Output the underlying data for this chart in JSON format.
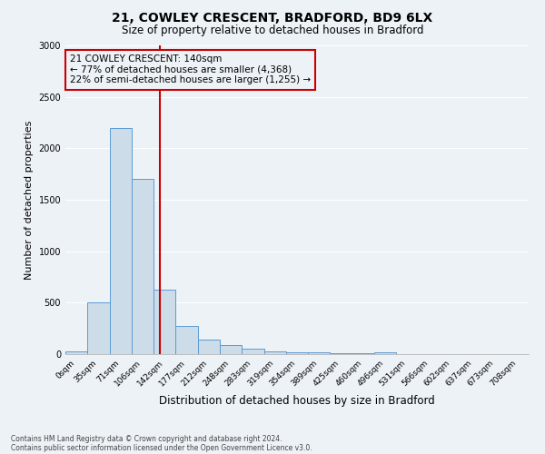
{
  "title1": "21, COWLEY CRESCENT, BRADFORD, BD9 6LX",
  "title2": "Size of property relative to detached houses in Bradford",
  "xlabel": "Distribution of detached houses by size in Bradford",
  "ylabel": "Number of detached properties",
  "bin_labels": [
    "0sqm",
    "35sqm",
    "71sqm",
    "106sqm",
    "142sqm",
    "177sqm",
    "212sqm",
    "248sqm",
    "283sqm",
    "319sqm",
    "354sqm",
    "389sqm",
    "425sqm",
    "460sqm",
    "496sqm",
    "531sqm",
    "566sqm",
    "602sqm",
    "637sqm",
    "673sqm",
    "708sqm"
  ],
  "bar_heights": [
    30,
    500,
    2200,
    1700,
    630,
    270,
    145,
    90,
    50,
    30,
    20,
    15,
    10,
    8,
    20,
    0,
    0,
    0,
    0,
    0,
    0
  ],
  "bar_color": "#ccdce8",
  "bar_edge_color": "#5b9bd5",
  "vline_x": 3.77,
  "vline_color": "#cc0000",
  "annotation_text": "21 COWLEY CRESCENT: 140sqm\n← 77% of detached houses are smaller (4,368)\n22% of semi-detached houses are larger (1,255) →",
  "annotation_box_color": "#cc0000",
  "ylim": [
    0,
    3000
  ],
  "yticks": [
    0,
    500,
    1000,
    1500,
    2000,
    2500,
    3000
  ],
  "footnote1": "Contains HM Land Registry data © Crown copyright and database right 2024.",
  "footnote2": "Contains public sector information licensed under the Open Government Licence v3.0.",
  "background_color": "#edf2f7",
  "grid_color": "#ffffff"
}
